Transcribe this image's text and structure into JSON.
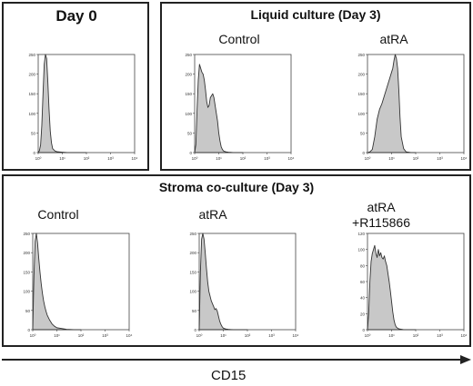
{
  "chart_data": [
    {
      "type": "area",
      "panel": "Day 0",
      "title": "",
      "yticks": [
        "250",
        "200",
        "150",
        "100",
        "50",
        "0"
      ],
      "ylim": [
        0,
        250
      ],
      "x": [
        0,
        0.05,
        0.1,
        0.15,
        0.2,
        0.25,
        0.3,
        0.35,
        0.4,
        0.45,
        0.5,
        0.55,
        0.6,
        0.7,
        0.8,
        1.0,
        1.2,
        1.5,
        2.0
      ],
      "values": [
        0,
        5,
        20,
        70,
        150,
        225,
        255,
        240,
        180,
        110,
        55,
        25,
        10,
        4,
        2,
        1,
        0,
        0,
        0
      ]
    },
    {
      "type": "area",
      "panel": "Liquid culture (Day 3)",
      "title": "Control",
      "yticks": [
        "250",
        "200",
        "150",
        "100",
        "50",
        "0"
      ],
      "ylim": [
        0,
        250
      ],
      "x": [
        0,
        0.05,
        0.1,
        0.15,
        0.2,
        0.25,
        0.3,
        0.35,
        0.4,
        0.45,
        0.5,
        0.55,
        0.6,
        0.65,
        0.7,
        0.75,
        0.8,
        0.85,
        0.9,
        0.95,
        1.0,
        1.05,
        1.1,
        1.15,
        1.2,
        1.3,
        1.4,
        1.6,
        2.0
      ],
      "values": [
        0,
        20,
        110,
        185,
        225,
        215,
        205,
        200,
        185,
        160,
        130,
        115,
        120,
        140,
        145,
        150,
        140,
        120,
        100,
        80,
        50,
        30,
        15,
        8,
        4,
        2,
        1,
        0,
        0
      ]
    },
    {
      "type": "area",
      "panel": "Liquid culture (Day 3)",
      "title": "atRA",
      "yticks": [
        "250",
        "200",
        "150",
        "100",
        "50",
        "0"
      ],
      "ylim": [
        0,
        250
      ],
      "x": [
        0,
        0.1,
        0.2,
        0.3,
        0.4,
        0.5,
        0.6,
        0.7,
        0.8,
        0.9,
        1.0,
        1.05,
        1.1,
        1.15,
        1.2,
        1.25,
        1.3,
        1.35,
        1.4,
        1.5,
        1.6,
        1.8,
        2.0
      ],
      "values": [
        0,
        2,
        8,
        40,
        85,
        110,
        125,
        145,
        165,
        185,
        205,
        215,
        235,
        250,
        240,
        215,
        160,
        90,
        40,
        10,
        2,
        0,
        0
      ]
    },
    {
      "type": "area",
      "panel": "Stroma co-culture (Day 3)",
      "title": "Control",
      "yticks": [
        "250",
        "200",
        "150",
        "100",
        "50",
        "0"
      ],
      "ylim": [
        0,
        250
      ],
      "x": [
        0,
        0.05,
        0.1,
        0.15,
        0.2,
        0.25,
        0.3,
        0.35,
        0.4,
        0.45,
        0.5,
        0.55,
        0.6,
        0.7,
        0.8,
        0.9,
        1.0,
        1.2,
        1.4,
        1.7,
        2.0
      ],
      "values": [
        0,
        140,
        230,
        250,
        225,
        185,
        150,
        120,
        95,
        75,
        60,
        48,
        38,
        25,
        15,
        9,
        5,
        3,
        1,
        0,
        0
      ]
    },
    {
      "type": "area",
      "panel": "Stroma co-culture (Day 3)",
      "title": "atRA",
      "yticks": [
        "250",
        "200",
        "150",
        "100",
        "50",
        "0"
      ],
      "ylim": [
        0,
        250
      ],
      "x": [
        0,
        0.05,
        0.1,
        0.15,
        0.2,
        0.25,
        0.3,
        0.35,
        0.4,
        0.5,
        0.6,
        0.65,
        0.7,
        0.75,
        0.8,
        0.85,
        0.9,
        0.95,
        1.0,
        1.1,
        1.2,
        1.4,
        1.7,
        2.0
      ],
      "values": [
        0,
        150,
        235,
        255,
        235,
        200,
        160,
        125,
        100,
        75,
        60,
        52,
        55,
        48,
        35,
        22,
        14,
        8,
        4,
        2,
        1,
        0,
        0,
        0
      ]
    },
    {
      "type": "area",
      "panel": "Stroma co-culture (Day 3)",
      "title": "atRA\n+R115866",
      "yticks": [
        "120",
        "100",
        "80",
        "60",
        "40",
        "20",
        "0"
      ],
      "ylim": [
        0,
        120
      ],
      "x": [
        0,
        0.05,
        0.1,
        0.15,
        0.2,
        0.25,
        0.3,
        0.35,
        0.4,
        0.45,
        0.5,
        0.55,
        0.6,
        0.65,
        0.7,
        0.75,
        0.8,
        0.85,
        0.9,
        0.95,
        1.0,
        1.05,
        1.1,
        1.15,
        1.2,
        1.3,
        1.5,
        1.8,
        2.0
      ],
      "values": [
        0,
        20,
        60,
        85,
        95,
        100,
        105,
        95,
        90,
        100,
        92,
        96,
        90,
        88,
        92,
        85,
        80,
        70,
        60,
        48,
        35,
        22,
        12,
        6,
        3,
        1,
        0,
        0,
        0
      ]
    }
  ],
  "panels": {
    "day0": {
      "title": "Day 0"
    },
    "liquid": {
      "title": "Liquid culture (Day 3)",
      "cond1": "Control",
      "cond2": "atRA"
    },
    "stroma": {
      "title": "Stroma co-culture (Day 3)",
      "cond1": "Control",
      "cond2": "atRA",
      "cond3a": "atRA",
      "cond3b": "+R115866"
    }
  },
  "axis": {
    "label": "CD15"
  },
  "xticks": [
    "10⁰",
    "10¹",
    "10²",
    "10³",
    "10⁴"
  ],
  "colors": {
    "fill": "#c8c8c8",
    "line": "#333333",
    "frame": "#222222"
  }
}
